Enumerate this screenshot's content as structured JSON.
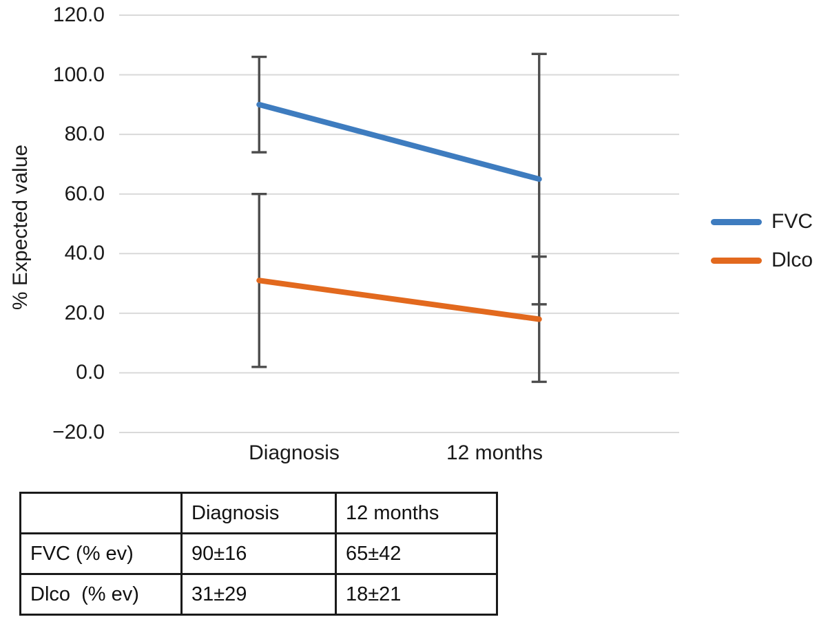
{
  "chart_data": {
    "type": "line",
    "title": "",
    "xlabel": "",
    "ylabel": "% Expected value",
    "categories": [
      "Diagnosis",
      "12 months"
    ],
    "series": [
      {
        "name": "FVC",
        "values": [
          90,
          65
        ],
        "errors": [
          16,
          42
        ],
        "color": "#3E7CBF"
      },
      {
        "name": "Dlco",
        "values": [
          31,
          18
        ],
        "errors": [
          29,
          21
        ],
        "color": "#E2691E"
      }
    ],
    "ylim": [
      -20,
      120
    ],
    "yticks": [
      {
        "value": 120,
        "label": "120.0"
      },
      {
        "value": 100,
        "label": "100.0"
      },
      {
        "value": 80,
        "label": "80.0"
      },
      {
        "value": 60,
        "label": "60.0"
      },
      {
        "value": 40,
        "label": "40.0"
      },
      {
        "value": 20,
        "label": "20.0"
      },
      {
        "value": 0,
        "label": "0.0"
      },
      {
        "value": -20,
        "label": "−20.0"
      }
    ],
    "grid": true,
    "legend_position": "right",
    "colors": {
      "gridline": "#d9d9d9",
      "error_bar": "#4d4d4d",
      "text": "#1a1a1a"
    }
  },
  "table": {
    "columns": [
      "",
      "Diagnosis",
      "12 months"
    ],
    "rows": [
      {
        "label": "FVC (% ev)",
        "values": [
          "90±16",
          "65±42"
        ]
      },
      {
        "label": "Dlco  (% ev)",
        "values": [
          "31±29",
          "18±21"
        ]
      }
    ]
  }
}
